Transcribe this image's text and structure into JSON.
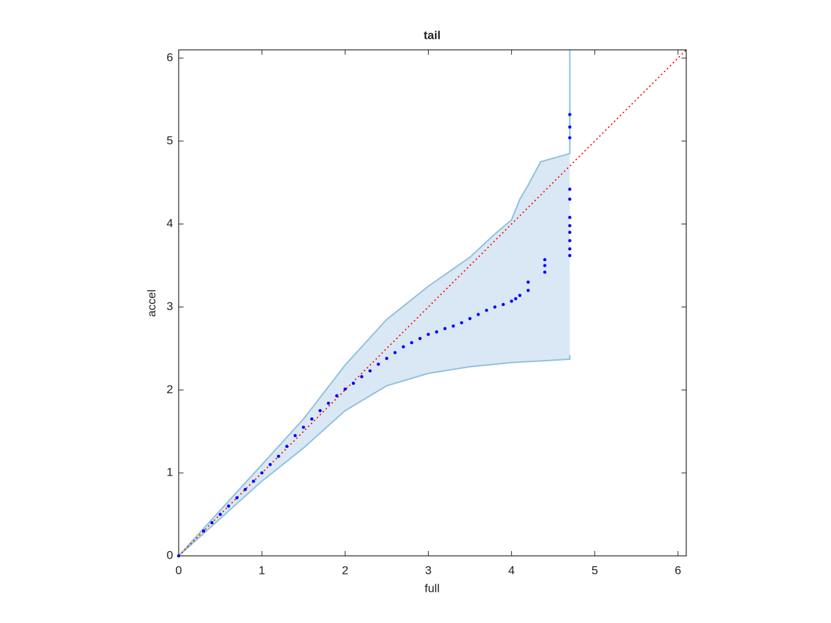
{
  "chart_data": {
    "type": "scatter",
    "title": "tail",
    "x_label": "full",
    "y_label": "accel",
    "xlim": [
      0,
      6.1
    ],
    "ylim": [
      0,
      6.1
    ],
    "xticks": [
      0,
      1,
      2,
      3,
      4,
      5,
      6
    ],
    "yticks": [
      0,
      1,
      2,
      3,
      4,
      5,
      6
    ],
    "reference_line": {
      "x": [
        0,
        6.1
      ],
      "y": [
        0,
        6.1
      ],
      "color": "#ff0000"
    },
    "band": {
      "line_color": "#8fc0de",
      "fill_color": "#d9e8f4",
      "x_upper": [
        0,
        0.5,
        1,
        1.5,
        2,
        2.5,
        3,
        3.5,
        3.8,
        4.0,
        4.1,
        4.2,
        4.35,
        4.7,
        4.7
      ],
      "upper": [
        0,
        0.55,
        1.1,
        1.65,
        2.3,
        2.85,
        3.25,
        3.6,
        3.88,
        4.05,
        4.3,
        4.47,
        4.75,
        4.85,
        6.1
      ],
      "x_lower": [
        0,
        0.5,
        1,
        1.5,
        2,
        2.5,
        3,
        3.5,
        4,
        4.7,
        4.7
      ],
      "lower": [
        0,
        0.45,
        0.9,
        1.3,
        1.75,
        2.05,
        2.2,
        2.28,
        2.33,
        2.37,
        2.42
      ]
    },
    "series": [
      {
        "color": "#0000ff",
        "x": [
          0,
          0.3,
          0.4,
          0.5,
          0.6,
          0.7,
          0.8,
          0.9,
          1.0,
          1.1,
          1.2,
          1.3,
          1.4,
          1.5,
          1.6,
          1.7,
          1.8,
          1.9,
          2.0,
          2.1,
          2.2,
          2.3,
          2.4,
          2.5,
          2.6,
          2.7,
          2.8,
          2.9,
          3.0,
          3.1,
          3.2,
          3.3,
          3.4,
          3.5,
          3.6,
          3.7,
          3.8,
          3.9,
          4.0,
          4.05,
          4.1,
          4.2,
          4.2,
          4.4,
          4.4,
          4.4,
          4.7,
          4.7,
          4.7,
          4.7,
          4.7,
          4.7,
          4.7,
          4.7,
          4.7,
          4.7,
          4.7
        ],
        "values": [
          0,
          0.3,
          0.4,
          0.5,
          0.6,
          0.7,
          0.8,
          0.9,
          1.0,
          1.1,
          1.2,
          1.32,
          1.45,
          1.55,
          1.65,
          1.75,
          1.84,
          1.93,
          2.01,
          2.08,
          2.16,
          2.23,
          2.31,
          2.38,
          2.45,
          2.52,
          2.57,
          2.62,
          2.67,
          2.7,
          2.74,
          2.77,
          2.81,
          2.86,
          2.91,
          2.96,
          3.0,
          3.03,
          3.07,
          3.1,
          3.14,
          3.2,
          3.3,
          3.42,
          3.5,
          3.57,
          3.62,
          3.7,
          3.8,
          3.9,
          3.98,
          4.08,
          4.3,
          4.42,
          5.04,
          5.17,
          5.32
        ]
      }
    ]
  }
}
